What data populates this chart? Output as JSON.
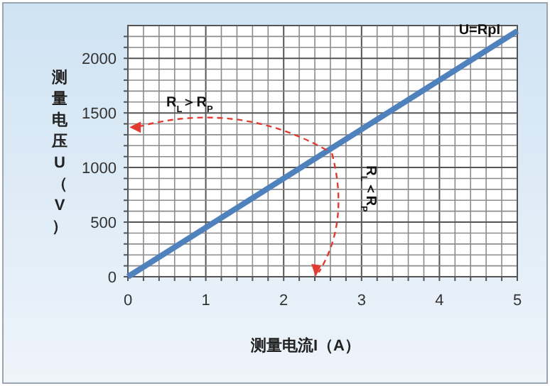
{
  "chart_data": {
    "type": "line",
    "xlabel": "测量电流I（A）",
    "ylabel": "测量电压U（V）",
    "x": [
      0,
      5
    ],
    "series": [
      {
        "name": "U=RpI",
        "color": "#4f81bd",
        "values": [
          0,
          2250
        ]
      }
    ],
    "xlim": [
      0,
      5
    ],
    "ylim": [
      0,
      2300
    ],
    "xticks": [
      0,
      {
        "value": 0.2,
        "label": null
      },
      {
        "value": 0.4,
        "label": null
      },
      {
        "value": 0.6,
        "label": null
      },
      {
        "value": 0.8,
        "label": null
      },
      1,
      {
        "value": 1.2,
        "label": null
      },
      {
        "value": 1.4,
        "label": null
      },
      {
        "value": 1.6,
        "label": null
      },
      {
        "value": 1.8,
        "label": null
      },
      2,
      {
        "value": 2.2,
        "label": null
      },
      {
        "value": 2.4,
        "label": null
      },
      {
        "value": 2.6,
        "label": null
      },
      {
        "value": 2.8,
        "label": null
      },
      3,
      {
        "value": 3.2,
        "label": null
      },
      {
        "value": 3.4,
        "label": null
      },
      {
        "value": 3.6,
        "label": null
      },
      {
        "value": 3.8,
        "label": null
      },
      4,
      {
        "value": 4.2,
        "label": null
      },
      {
        "value": 4.4,
        "label": null
      },
      {
        "value": 4.6,
        "label": null
      },
      {
        "value": 4.8,
        "label": null
      },
      5
    ],
    "yticks": [
      0,
      {
        "value": 100,
        "label": null
      },
      {
        "value": 200,
        "label": null
      },
      {
        "value": 300,
        "label": null
      },
      {
        "value": 400,
        "label": null
      },
      500,
      {
        "value": 600,
        "label": null
      },
      {
        "value": 700,
        "label": null
      },
      {
        "value": 800,
        "label": null
      },
      {
        "value": 900,
        "label": null
      },
      1000,
      {
        "value": 1100,
        "label": null
      },
      {
        "value": 1200,
        "label": null
      },
      {
        "value": 1300,
        "label": null
      },
      {
        "value": 1400,
        "label": null
      },
      1500,
      {
        "value": 1600,
        "label": null
      },
      {
        "value": 1700,
        "label": null
      },
      {
        "value": 1800,
        "label": null
      },
      {
        "value": 1900,
        "label": null
      },
      2000,
      {
        "value": 2100,
        "label": null
      },
      {
        "value": 2200,
        "label": null
      }
    ],
    "grid": true,
    "legend": false,
    "annotations": [
      "R$_{L}$＞R$_{P}$",
      "R$_{L}$＜R$_{P}$"
    ]
  }
}
